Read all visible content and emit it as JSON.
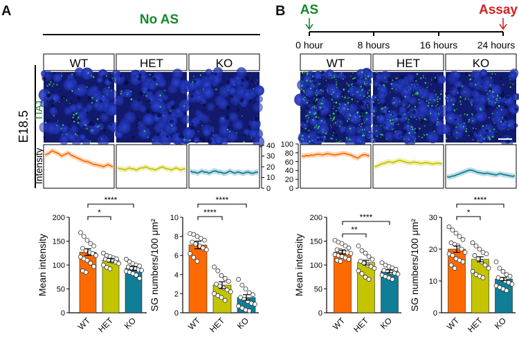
{
  "panel_a": {
    "letter": "A",
    "condition": "No AS",
    "age": "E18.5",
    "stain": "TIA1",
    "intensity_label": "Intensity",
    "intensity_ticks": [
      "0",
      "10",
      "20",
      "30",
      "40"
    ]
  },
  "panel_b": {
    "letter": "B",
    "as_label": "AS",
    "assay_label": "Assay",
    "timeline": [
      "0 hour",
      "8 hours",
      "16 hours",
      "24 hours"
    ],
    "intensity_ticks": [
      "0",
      "20",
      "40",
      "60",
      "80",
      "100"
    ]
  },
  "genotypes": [
    "WT",
    "HET",
    "KO"
  ],
  "colors": {
    "wt": "#ff6a00",
    "het": "#c4c400",
    "ko": "#0f7e96",
    "green_text": "#16862a",
    "red_text": "#d42020",
    "nuclei": "#1a2fb0",
    "puncta": "#3ee04a"
  },
  "chart_data": [
    {
      "id": "a-mean",
      "type": "bar",
      "categories": [
        "WT",
        "HET",
        "KO"
      ],
      "values": [
        127,
        110,
        93
      ],
      "errors": [
        7,
        4,
        4
      ],
      "points": [
        [
          168,
          160,
          152,
          145,
          140,
          135,
          130,
          127,
          124,
          120,
          117,
          113,
          110,
          104,
          97,
          88,
          85
        ],
        [
          125,
          120,
          118,
          115,
          113,
          112,
          110,
          108,
          106,
          103,
          100,
          95,
          92
        ],
        [
          112,
          107,
          103,
          100,
          98,
          96,
          94,
          92,
          90,
          89,
          87,
          85,
          82,
          79,
          72
        ]
      ],
      "ylabel": "Mean intensity",
      "ylim": [
        0,
        200
      ],
      "yticks": [
        "0",
        "50",
        "100",
        "150",
        "200"
      ],
      "significance": [
        {
          "pair": "WT-HET",
          "label": "*"
        },
        {
          "pair": "WT-KO",
          "label": "****"
        }
      ]
    },
    {
      "id": "a-sg",
      "type": "bar",
      "categories": [
        "WT",
        "HET",
        "KO"
      ],
      "values": [
        7.1,
        2.9,
        1.6
      ],
      "errors": [
        0.4,
        0.35,
        0.3
      ],
      "points": [
        [
          8.3,
          8.2,
          8.0,
          7.8,
          7.6,
          7.4,
          7.2,
          7.0,
          6.8,
          6.6,
          6.2,
          5.8,
          5.4
        ],
        [
          4.8,
          4.4,
          3.9,
          3.6,
          3.3,
          3.0,
          2.8,
          2.6,
          2.4,
          2.2,
          2.0,
          1.8,
          1.6,
          1.3
        ],
        [
          3.5,
          2.9,
          2.5,
          2.1,
          1.9,
          1.6,
          1.4,
          1.2,
          1.0,
          0.9,
          0.7,
          0.5,
          0.3,
          0.2
        ]
      ],
      "ylabel": "SG numbers/100 μm²",
      "ylim": [
        0,
        10
      ],
      "yticks": [
        "0",
        "2",
        "4",
        "6",
        "8",
        "10"
      ],
      "significance": [
        {
          "pair": "WT-HET",
          "label": "****"
        },
        {
          "pair": "WT-KO",
          "label": "****"
        }
      ]
    },
    {
      "id": "b-mean",
      "type": "bar",
      "categories": [
        "WT",
        "HET",
        "KO"
      ],
      "values": [
        127,
        105,
        87
      ],
      "errors": [
        4,
        5,
        3
      ],
      "points": [
        [
          152,
          148,
          145,
          140,
          136,
          132,
          130,
          128,
          126,
          124,
          122,
          120,
          118,
          115,
          112,
          110,
          108
        ],
        [
          140,
          130,
          125,
          118,
          112,
          108,
          104,
          100,
          97,
          93,
          88,
          82,
          75,
          70
        ],
        [
          105,
          100,
          97,
          94,
          91,
          89,
          87,
          85,
          83,
          81,
          79,
          76,
          73,
          70
        ]
      ],
      "ylabel": "Mean intensity",
      "ylim": [
        0,
        200
      ],
      "yticks": [
        "0",
        "50",
        "100",
        "150",
        "200"
      ],
      "significance": [
        {
          "pair": "WT-HET",
          "label": "**"
        },
        {
          "pair": "WT-KO",
          "label": "****"
        }
      ]
    },
    {
      "id": "b-sg",
      "type": "bar",
      "categories": [
        "WT",
        "HET",
        "KO"
      ],
      "values": [
        20,
        16.8,
        10.6
      ],
      "errors": [
        1,
        0.8,
        0.5
      ],
      "points": [
        [
          27,
          26,
          25,
          24,
          23,
          22,
          21.5,
          21,
          20,
          19,
          18.5,
          18,
          17,
          16.5,
          16,
          15,
          14
        ],
        [
          22,
          21,
          20,
          19,
          18.5,
          18,
          17,
          16,
          15,
          14,
          13,
          12,
          11.5,
          11
        ],
        [
          16,
          14,
          13,
          12,
          11.5,
          11,
          10.5,
          10,
          9.5,
          9,
          8.5,
          8,
          7.5,
          7
        ]
      ],
      "ylabel": "SG numbers/100 μm²",
      "ylim": [
        0,
        30
      ],
      "yticks": [
        "0",
        "10",
        "20",
        "30"
      ],
      "significance": [
        {
          "pair": "WT-HET",
          "label": "*"
        },
        {
          "pair": "WT-KO",
          "label": "****"
        }
      ]
    },
    {
      "id": "a-profiles",
      "type": "line",
      "ylim": [
        0,
        40
      ],
      "series": [
        {
          "name": "WT",
          "values": [
            31,
            32,
            33,
            35,
            34,
            33,
            32,
            30,
            31,
            32,
            33,
            31,
            30,
            29,
            28,
            27,
            26,
            25,
            25,
            24,
            23,
            22,
            22,
            21,
            21,
            20,
            21,
            22,
            21,
            20
          ]
        },
        {
          "name": "HET",
          "values": [
            19,
            18,
            18,
            17,
            18,
            19,
            18,
            18,
            17,
            18,
            19,
            19,
            20,
            19,
            18,
            18,
            17,
            18,
            19,
            20,
            19,
            18,
            18,
            17,
            18,
            19,
            18,
            17,
            18,
            18
          ]
        },
        {
          "name": "KO",
          "values": [
            16,
            15,
            15,
            14,
            15,
            16,
            15,
            15,
            14,
            15,
            16,
            16,
            15,
            15,
            14,
            14,
            15,
            16,
            15,
            14,
            15,
            15,
            14,
            14,
            15,
            15,
            14,
            14,
            15,
            15
          ]
        }
      ]
    },
    {
      "id": "b-profiles",
      "type": "line",
      "ylim": [
        0,
        100
      ],
      "series": [
        {
          "name": "WT",
          "values": [
            73,
            72,
            74,
            73,
            75,
            74,
            76,
            77,
            76,
            75,
            77,
            78,
            77,
            76,
            75,
            76,
            77,
            78,
            79,
            78,
            76,
            75,
            72,
            70,
            68,
            72,
            75,
            76,
            74,
            73
          ]
        },
        {
          "name": "HET",
          "values": [
            48,
            50,
            52,
            55,
            56,
            58,
            60,
            59,
            58,
            60,
            62,
            63,
            61,
            60,
            58,
            57,
            58,
            59,
            58,
            57,
            56,
            57,
            58,
            57,
            56,
            55,
            56,
            57,
            56,
            55
          ]
        },
        {
          "name": "KO",
          "values": [
            26,
            25,
            27,
            28,
            30,
            32,
            34,
            36,
            38,
            40,
            41,
            40,
            38,
            36,
            35,
            34,
            33,
            34,
            33,
            32,
            31,
            30,
            32,
            33,
            31,
            30,
            29,
            28,
            27,
            28
          ]
        }
      ]
    }
  ]
}
